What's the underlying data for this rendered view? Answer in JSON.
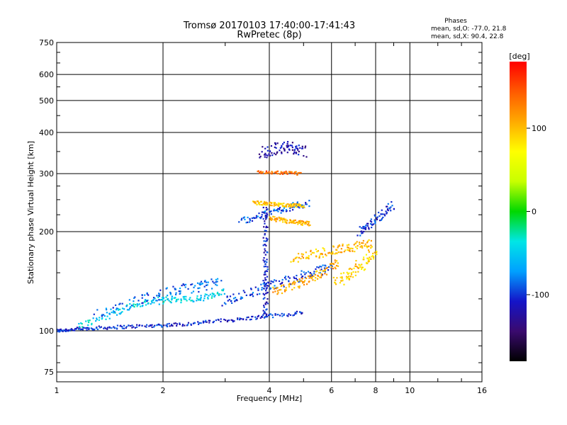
{
  "chart_data": {
    "type": "scatter",
    "title": "Tromsø 20170103 17:40:00-17:41:43",
    "subtitle": "RwPretec (8p)",
    "xlabel": "Frequency [MHz]",
    "ylabel": "Stationary phase Virtual Height [km]",
    "x_scale": "log",
    "y_scale": "log",
    "xlim": [
      1,
      16
    ],
    "ylim": [
      70,
      750
    ],
    "x_ticks": [
      1,
      2,
      4,
      6,
      8,
      10,
      16
    ],
    "y_ticks": [
      75,
      100,
      200,
      300,
      400,
      500,
      600,
      750
    ],
    "grid": true,
    "annotation": {
      "heading": "Phases",
      "line1": "mean, sd,O: -77.0, 21.8",
      "line2": "mean, sd,X:  90.4, 22.8"
    },
    "colorbar": {
      "label": "[deg]",
      "min": -180,
      "max": 180,
      "ticks": [
        -100,
        0,
        100
      ],
      "colors": [
        "#000000",
        "#3a0a6e",
        "#1414c8",
        "#00a0ff",
        "#00e6e6",
        "#00d800",
        "#c8ff00",
        "#ffff00",
        "#ffaa00",
        "#ff5a00",
        "#ff0000"
      ]
    },
    "traces": [
      {
        "x": [
          1.0,
          1.05,
          1.12,
          1.2,
          1.3,
          1.45,
          1.6,
          1.8,
          2.0,
          2.2,
          2.5,
          2.8,
          3.2,
          3.6,
          4.0,
          4.5,
          5.0
        ],
        "y": [
          100,
          100.5,
          101,
          101.5,
          102,
          102.5,
          103,
          103.5,
          104,
          104.5,
          105.5,
          107,
          108,
          109.5,
          111,
          112,
          114
        ],
        "phase": -105,
        "spread": 0.015
      },
      {
        "x": [
          1.15,
          1.3,
          1.45,
          1.6,
          1.75,
          1.9,
          2.05,
          2.2,
          2.4,
          2.6,
          2.8,
          3.0
        ],
        "y": [
          104,
          108,
          113,
          118,
          121,
          123,
          124,
          125,
          124,
          126,
          128,
          131
        ],
        "phase": -45,
        "spread": 0.03
      },
      {
        "x": [
          1.3,
          1.5,
          1.7,
          1.9,
          2.1,
          2.3,
          2.5,
          2.7,
          2.9
        ],
        "y": [
          112,
          119,
          124,
          128,
          131,
          134,
          136,
          138,
          140
        ],
        "phase": -85,
        "spread": 0.045
      },
      {
        "x": [
          3.0,
          3.2,
          3.5,
          3.8,
          4.1,
          4.4,
          4.8,
          5.2,
          5.6,
          6.0
        ],
        "y": [
          123,
          126,
          130,
          135,
          138,
          141,
          145,
          149,
          153,
          158
        ],
        "phase": -95,
        "spread": 0.04
      },
      {
        "x": [
          3.3,
          3.6,
          3.9,
          4.2,
          4.5,
          4.8,
          5.2
        ],
        "y": [
          216,
          220,
          226,
          232,
          236,
          240,
          244
        ],
        "phase": -90,
        "spread": 0.03
      },
      {
        "x": [
          3.6,
          3.8,
          4.0,
          4.2,
          4.4,
          4.6,
          4.8,
          5.0
        ],
        "y": [
          245,
          244,
          243,
          242,
          241,
          240,
          240,
          239
        ],
        "phase": 95,
        "spread": 0.015
      },
      {
        "x": [
          4.0,
          4.2,
          4.4,
          4.6,
          4.8,
          5.0,
          5.2
        ],
        "y": [
          220,
          218,
          216,
          214,
          213,
          212,
          212
        ],
        "phase": 105,
        "spread": 0.02
      },
      {
        "x": [
          4.1,
          4.4,
          4.7,
          5.0,
          5.3,
          5.6,
          6.0,
          6.3
        ],
        "y": [
          132,
          134,
          137,
          141,
          145,
          150,
          156,
          162
        ],
        "phase": 110,
        "spread": 0.035
      },
      {
        "x": [
          4.6,
          5.0,
          5.4,
          5.8,
          6.2,
          6.6,
          7.0,
          7.4,
          7.8
        ],
        "y": [
          165,
          168,
          171,
          174,
          176,
          178,
          180,
          182,
          184
        ],
        "phase": 100,
        "spread": 0.04
      },
      {
        "x": [
          6.2,
          6.5,
          6.8,
          7.1,
          7.4,
          7.7,
          8.0
        ],
        "y": [
          140,
          145,
          150,
          156,
          160,
          168,
          175
        ],
        "phase": 90,
        "spread": 0.05
      },
      {
        "x": [
          3.9,
          3.9,
          3.9,
          3.9,
          3.9,
          3.9,
          3.9,
          3.9
        ],
        "y": [
          110,
          120,
          135,
          150,
          170,
          190,
          215,
          240
        ],
        "phase": -110,
        "spread": 0.03
      },
      {
        "x": [
          3.8,
          4.0,
          4.2,
          4.4,
          4.6,
          4.8,
          5.0
        ],
        "y": [
          345,
          352,
          358,
          362,
          360,
          356,
          350
        ],
        "phase": -120,
        "spread": 0.05
      },
      {
        "x": [
          3.7,
          4.0,
          4.3,
          4.6,
          4.9
        ],
        "y": [
          305,
          303,
          302,
          301,
          300
        ],
        "phase": 135,
        "spread": 0.015
      },
      {
        "x": [
          7.2,
          7.5,
          7.8,
          8.2,
          8.6,
          9.0
        ],
        "y": [
          200,
          205,
          212,
          222,
          232,
          240
        ],
        "phase": -100,
        "spread": 0.04
      }
    ]
  }
}
